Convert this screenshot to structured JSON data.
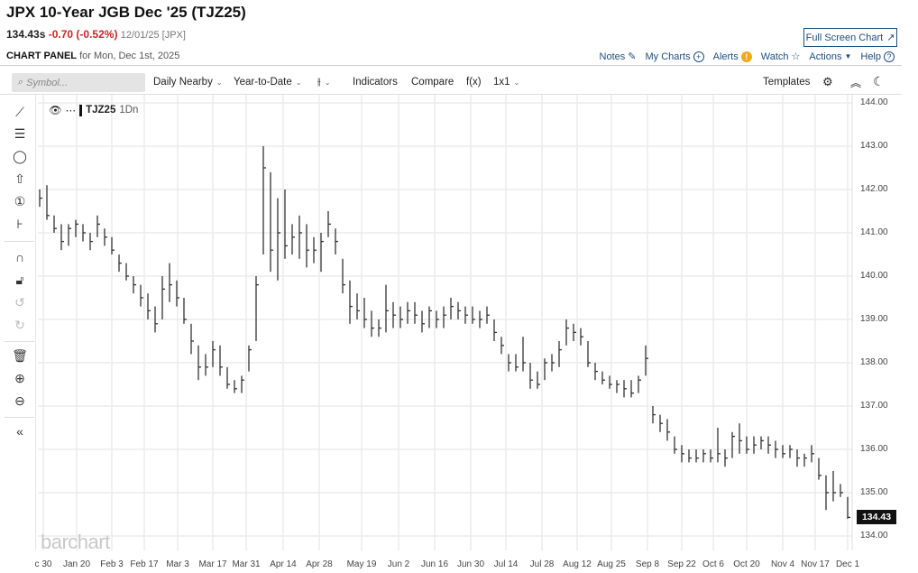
{
  "header": {
    "title": "JPX 10-Year JGB Dec '25 (TJZ25)",
    "last": "134.43s",
    "change": "-0.70 (-0.52%)",
    "date": "12/01/25 [JPX]",
    "panel_label": "CHART PANEL",
    "panel_date": "for Mon, Dec 1st, 2025",
    "fullscreen": "Full Screen Chart"
  },
  "links": {
    "notes": "Notes",
    "my_charts": "My Charts",
    "alerts": "Alerts",
    "watch": "Watch",
    "actions": "Actions",
    "help": "Help"
  },
  "toolbar": {
    "symbol_placeholder": "Symbol...",
    "frequency": "Daily Nearby",
    "range": "Year-to-Date",
    "indicators": "Indicators",
    "compare": "Compare",
    "fx": "f(x)",
    "layout": "1x1",
    "templates": "Templates"
  },
  "legend": {
    "symbol": "TJZ25",
    "interval": "1Dn"
  },
  "logo": "barchart",
  "colors": {
    "accent": "#1c4e80",
    "down": "#c62828",
    "bars": "#333333",
    "alert": "#f2a91b"
  },
  "chart_data": {
    "type": "ohlc-bar",
    "symbol": "TJZ25",
    "last_price": "134.43",
    "ylim": [
      134,
      144
    ],
    "y_ticks": [
      "144.00",
      "143.00",
      "142.00",
      "141.00",
      "140.00",
      "139.00",
      "138.00",
      "137.00",
      "136.00",
      "135.00",
      "134.00"
    ],
    "x_ticks": [
      "c 30",
      "Jan 20",
      "Feb 3",
      "Feb 17",
      "Mar 3",
      "Mar 17",
      "Mar 31",
      "Apr 14",
      "Apr 28",
      "May 19",
      "Jun 2",
      "Jun 16",
      "Jun 30",
      "Jul 14",
      "Jul 28",
      "Aug 12",
      "Aug 25",
      "Sep 8",
      "Sep 22",
      "Oct 6",
      "Oct 20",
      "Nov 4",
      "Nov 17",
      "Dec 1"
    ],
    "grid": true,
    "bars_hlc": [
      [
        142.0,
        141.6,
        141.8
      ],
      [
        142.1,
        141.3,
        141.4
      ],
      [
        141.4,
        141.0,
        141.1
      ],
      [
        141.2,
        140.6,
        140.8
      ],
      [
        141.2,
        140.7,
        141.1
      ],
      [
        141.3,
        140.9,
        141.2
      ],
      [
        141.2,
        140.8,
        141.0
      ],
      [
        141.0,
        140.6,
        140.8
      ],
      [
        141.4,
        140.9,
        141.2
      ],
      [
        141.1,
        140.7,
        140.9
      ],
      [
        140.9,
        140.5,
        140.6
      ],
      [
        140.5,
        140.1,
        140.3
      ],
      [
        140.3,
        139.9,
        140.0
      ],
      [
        140.0,
        139.6,
        139.8
      ],
      [
        139.8,
        139.3,
        139.5
      ],
      [
        139.6,
        139.0,
        139.2
      ],
      [
        139.3,
        138.7,
        138.9
      ],
      [
        140.0,
        139.0,
        139.7
      ],
      [
        140.3,
        139.4,
        139.8
      ],
      [
        139.9,
        139.3,
        139.5
      ],
      [
        139.5,
        138.9,
        139.0
      ],
      [
        138.9,
        138.2,
        138.5
      ],
      [
        138.4,
        137.6,
        137.9
      ],
      [
        138.2,
        137.7,
        137.9
      ],
      [
        138.5,
        137.9,
        138.3
      ],
      [
        138.4,
        137.7,
        137.9
      ],
      [
        137.9,
        137.4,
        137.5
      ],
      [
        137.6,
        137.3,
        137.4
      ],
      [
        137.7,
        137.3,
        137.6
      ],
      [
        138.4,
        137.8,
        138.3
      ],
      [
        140.0,
        138.5,
        139.8
      ],
      [
        143.0,
        140.5,
        142.5
      ],
      [
        142.4,
        140.1,
        140.6
      ],
      [
        141.8,
        139.9,
        141.0
      ],
      [
        142.0,
        140.4,
        140.7
      ],
      [
        141.2,
        140.5,
        140.9
      ],
      [
        141.4,
        140.4,
        141.0
      ],
      [
        141.2,
        140.2,
        140.6
      ],
      [
        140.9,
        140.3,
        140.6
      ],
      [
        141.0,
        140.1,
        140.8
      ],
      [
        141.5,
        140.9,
        141.2
      ],
      [
        141.1,
        140.5,
        140.8
      ],
      [
        140.4,
        139.6,
        139.8
      ],
      [
        139.9,
        138.9,
        139.3
      ],
      [
        139.6,
        139.0,
        139.2
      ],
      [
        139.5,
        138.8,
        139.0
      ],
      [
        139.2,
        138.6,
        138.8
      ],
      [
        139.0,
        138.6,
        138.8
      ],
      [
        139.8,
        138.7,
        139.2
      ],
      [
        139.4,
        138.8,
        139.1
      ],
      [
        139.3,
        138.8,
        139.0
      ],
      [
        139.4,
        138.9,
        139.2
      ],
      [
        139.4,
        138.9,
        139.1
      ],
      [
        139.2,
        138.7,
        138.9
      ],
      [
        139.3,
        138.8,
        139.2
      ],
      [
        139.2,
        138.8,
        139.0
      ],
      [
        139.3,
        138.8,
        139.1
      ],
      [
        139.5,
        139.0,
        139.3
      ],
      [
        139.4,
        139.0,
        139.2
      ],
      [
        139.3,
        138.9,
        139.1
      ],
      [
        139.3,
        138.9,
        139.0
      ],
      [
        139.2,
        138.8,
        139.0
      ],
      [
        139.3,
        138.9,
        139.1
      ],
      [
        139.0,
        138.5,
        138.7
      ],
      [
        138.6,
        138.2,
        138.4
      ],
      [
        138.2,
        137.8,
        138.0
      ],
      [
        138.2,
        137.8,
        137.9
      ],
      [
        138.6,
        137.8,
        138.0
      ],
      [
        138.0,
        137.4,
        137.6
      ],
      [
        137.8,
        137.4,
        137.5
      ],
      [
        138.1,
        137.6,
        138.0
      ],
      [
        138.2,
        137.8,
        138.0
      ],
      [
        138.5,
        137.9,
        138.3
      ],
      [
        139.0,
        138.4,
        138.8
      ],
      [
        138.9,
        138.5,
        138.7
      ],
      [
        138.8,
        138.4,
        138.6
      ],
      [
        138.5,
        137.9,
        138.0
      ],
      [
        138.0,
        137.6,
        137.8
      ],
      [
        137.8,
        137.5,
        137.6
      ],
      [
        137.7,
        137.4,
        137.5
      ],
      [
        137.6,
        137.3,
        137.5
      ],
      [
        137.6,
        137.2,
        137.4
      ],
      [
        137.6,
        137.2,
        137.3
      ],
      [
        137.7,
        137.3,
        137.6
      ],
      [
        138.4,
        137.7,
        138.1
      ],
      [
        137.0,
        136.6,
        136.8
      ],
      [
        136.8,
        136.4,
        136.6
      ],
      [
        136.7,
        136.2,
        136.4
      ],
      [
        136.3,
        135.9,
        136.0
      ],
      [
        136.1,
        135.7,
        135.9
      ],
      [
        136.0,
        135.7,
        135.8
      ],
      [
        136.0,
        135.7,
        135.8
      ],
      [
        136.0,
        135.7,
        135.9
      ],
      [
        136.0,
        135.7,
        135.8
      ],
      [
        136.5,
        135.7,
        135.9
      ],
      [
        136.0,
        135.6,
        135.8
      ],
      [
        136.4,
        135.8,
        136.3
      ],
      [
        136.6,
        135.9,
        136.2
      ],
      [
        136.3,
        135.9,
        136.0
      ],
      [
        136.3,
        135.9,
        136.1
      ],
      [
        136.3,
        136.0,
        136.2
      ],
      [
        136.3,
        135.9,
        136.1
      ],
      [
        136.2,
        135.8,
        136.0
      ],
      [
        136.1,
        135.8,
        135.9
      ],
      [
        136.1,
        135.8,
        136.0
      ],
      [
        136.0,
        135.6,
        135.8
      ],
      [
        135.9,
        135.6,
        135.8
      ],
      [
        136.1,
        135.7,
        135.9
      ],
      [
        135.8,
        135.3,
        135.4
      ],
      [
        135.4,
        134.6,
        135.0
      ],
      [
        135.5,
        134.8,
        135.0
      ],
      [
        135.2,
        134.9,
        135.0
      ],
      [
        134.9,
        134.4,
        134.43
      ]
    ]
  }
}
